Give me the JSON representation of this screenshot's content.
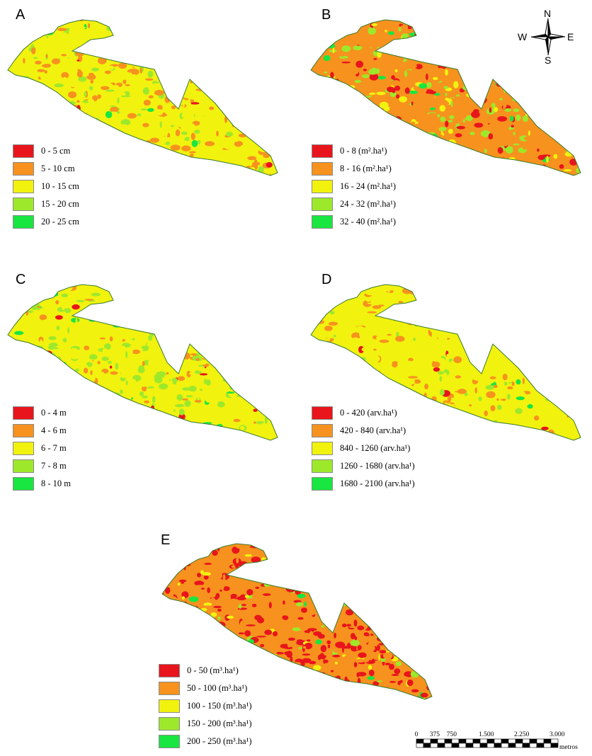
{
  "colors": {
    "class1": "#e8151c",
    "class2": "#f7921e",
    "class3": "#f2f20f",
    "class4": "#9ee82b",
    "class5": "#19e640",
    "outline": "#3a7a2a"
  },
  "panels": [
    {
      "letter": "A",
      "base": "class3",
      "mix": [
        0.02,
        0.3,
        0.52,
        0.14,
        0.02
      ],
      "legend": [
        "0 - 5 cm",
        "5 - 10 cm",
        "10 - 15 cm",
        "15 - 20 cm",
        "20 - 25 cm"
      ]
    },
    {
      "letter": "B",
      "base": "class2",
      "mix": [
        0.18,
        0.45,
        0.12,
        0.2,
        0.05
      ],
      "legend": [
        "0 - 8 (m².ha¹)",
        "8 - 16 (m².ha¹)",
        "16 - 24 (m².ha¹)",
        "24 - 32 (m².ha¹)",
        "32 - 40 (m².ha¹)"
      ]
    },
    {
      "letter": "C",
      "base": "class3",
      "mix": [
        0.03,
        0.1,
        0.55,
        0.28,
        0.04
      ],
      "legend": [
        "0 - 4 m",
        "4 - 6 m",
        "6 - 7 m",
        "7 - 8 m",
        "8 - 10 m"
      ]
    },
    {
      "letter": "D",
      "base": "class3",
      "mix": [
        0.02,
        0.18,
        0.72,
        0.06,
        0.02
      ],
      "legend": [
        "0 - 420 (arv.ha¹)",
        "420 - 840 (arv.ha¹)",
        "840 - 1260 (arv.ha¹)",
        "1260 - 1680 (arv.ha¹)",
        "1680 - 2100 (arv.ha¹)"
      ]
    },
    {
      "letter": "E",
      "base": "class2",
      "mix": [
        0.45,
        0.4,
        0.08,
        0.05,
        0.02
      ],
      "legend": [
        "0 - 50 (m³.ha¹)",
        "50 - 100 (m³.ha¹)",
        "100 - 150 (m³.ha¹)",
        "150 - 200 (m³.ha¹)",
        "200 - 250 (m³.ha¹)"
      ]
    }
  ],
  "compass": {
    "n": "N",
    "s": "S",
    "e": "E",
    "w": "W"
  },
  "scale_bar": {
    "ticks": [
      "0",
      "375",
      "750",
      "1.500",
      "2.250",
      "3.000"
    ],
    "unit": "metros"
  }
}
